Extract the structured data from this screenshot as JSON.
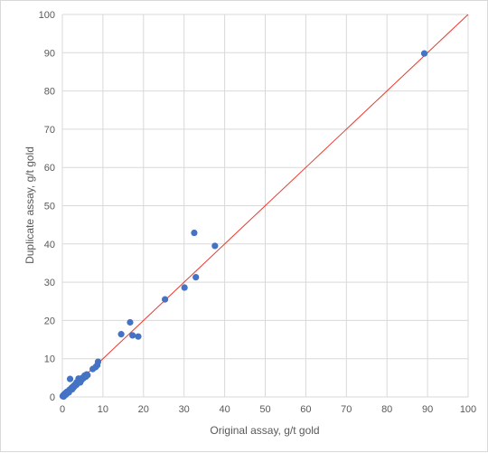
{
  "chart_data": {
    "type": "scatter",
    "title": "",
    "xlabel": "Original assay, g/t gold",
    "ylabel": "Duplicate assay, g/t gold",
    "xlim": [
      0,
      100
    ],
    "ylim": [
      0,
      100
    ],
    "xticks": [
      0,
      10,
      20,
      30,
      40,
      50,
      60,
      70,
      80,
      90,
      100
    ],
    "yticks": [
      0,
      10,
      20,
      30,
      40,
      50,
      60,
      70,
      80,
      90,
      100
    ],
    "grid": true,
    "legend": "none",
    "colors": {
      "points": "#4472c4",
      "reference_line": "#e8372c",
      "grid": "#d9d9d9",
      "axis_text": "#595959"
    },
    "reference_line": {
      "x": [
        0,
        100
      ],
      "y": [
        0,
        100
      ]
    },
    "series": [
      {
        "points": [
          [
            0.1,
            0.2
          ],
          [
            0.2,
            0.4
          ],
          [
            0.3,
            0.1
          ],
          [
            0.4,
            0.6
          ],
          [
            0.5,
            0.3
          ],
          [
            0.6,
            0.8
          ],
          [
            0.7,
            0.5
          ],
          [
            0.8,
            1.0
          ],
          [
            0.9,
            0.7
          ],
          [
            1.0,
            1.2
          ],
          [
            1.1,
            0.9
          ],
          [
            1.2,
            1.4
          ],
          [
            1.3,
            1.1
          ],
          [
            1.5,
            1.5
          ],
          [
            1.6,
            1.2
          ],
          [
            1.8,
            1.9
          ],
          [
            1.9,
            4.7
          ],
          [
            2.0,
            1.8
          ],
          [
            2.2,
            2.3
          ],
          [
            2.4,
            2.0
          ],
          [
            2.5,
            2.6
          ],
          [
            2.7,
            2.4
          ],
          [
            2.9,
            3.0
          ],
          [
            3.0,
            2.8
          ],
          [
            3.2,
            3.3
          ],
          [
            3.4,
            3.1
          ],
          [
            3.5,
            3.8
          ],
          [
            3.7,
            3.5
          ],
          [
            3.9,
            4.2
          ],
          [
            4.0,
            4.8
          ],
          [
            4.2,
            4.0
          ],
          [
            4.4,
            3.8
          ],
          [
            4.5,
            4.6
          ],
          [
            4.7,
            4.4
          ],
          [
            5.0,
            5.0
          ],
          [
            5.2,
            4.9
          ],
          [
            5.5,
            5.6
          ],
          [
            5.8,
            5.3
          ],
          [
            6.0,
            5.9
          ],
          [
            6.2,
            5.7
          ],
          [
            7.5,
            7.3
          ],
          [
            8.2,
            7.8
          ],
          [
            8.6,
            8.3
          ],
          [
            8.8,
            9.2
          ],
          [
            14.5,
            16.4
          ],
          [
            16.7,
            19.5
          ],
          [
            17.3,
            16.1
          ],
          [
            18.7,
            15.8
          ],
          [
            25.3,
            25.5
          ],
          [
            30.1,
            28.6
          ],
          [
            32.5,
            42.9
          ],
          [
            32.9,
            31.3
          ],
          [
            37.6,
            39.5
          ],
          [
            89.2,
            89.8
          ]
        ]
      }
    ]
  }
}
